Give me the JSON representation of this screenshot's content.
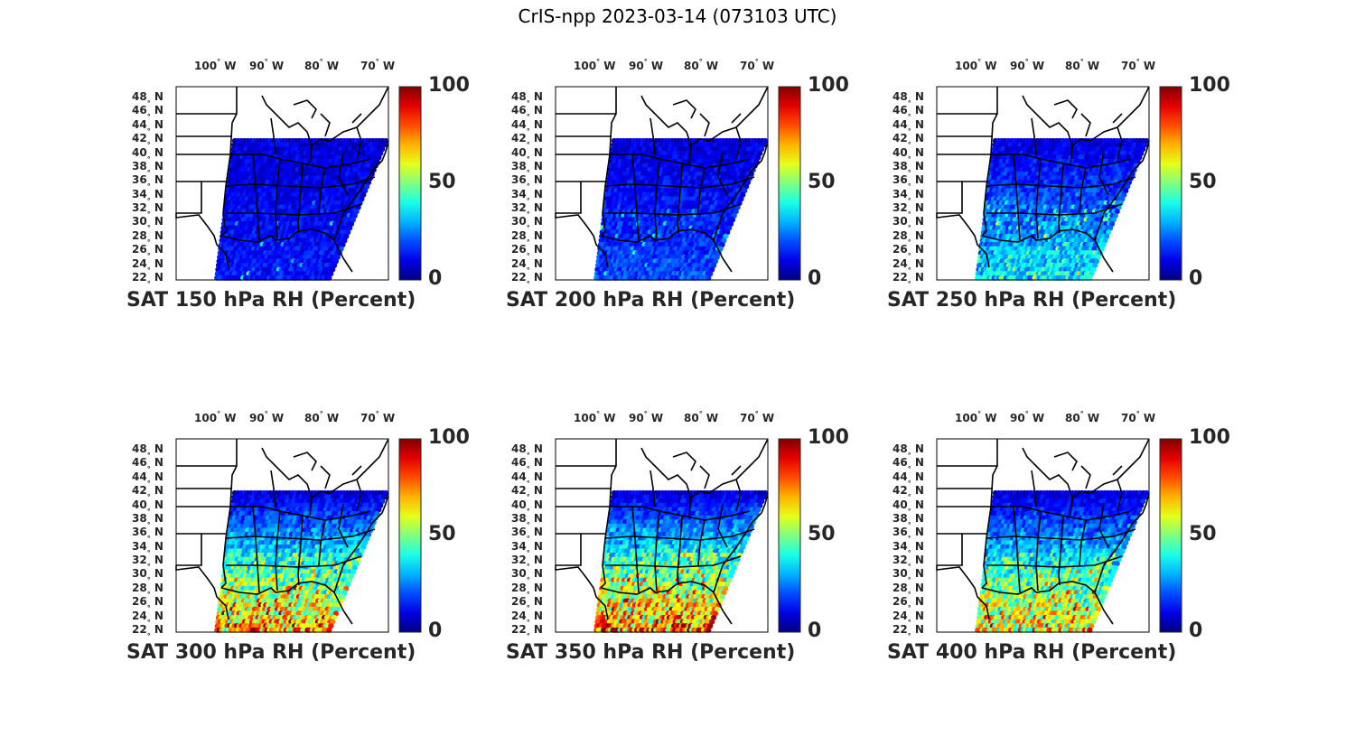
{
  "figure": {
    "title": "CrIS-npp 2023-03-14 (073103 UTC)"
  },
  "lon_labels": [
    "100",
    "90",
    "80",
    "70"
  ],
  "lon_suffix": "W",
  "lat_labels": [
    "48",
    "46",
    "44",
    "42",
    "40",
    "38",
    "36",
    "34",
    "32",
    "30",
    "28",
    "26",
    "24",
    "22"
  ],
  "lat_suffix": "N",
  "degree_symbol": "°",
  "colorbar": {
    "ticks": [
      "100",
      "50",
      "0"
    ],
    "min": 0,
    "max": 100,
    "colormap": "jet"
  },
  "panels": [
    {
      "title": "SAT 150 hPa RH (Percent)",
      "level": "150 hPa",
      "moisture": 0.05
    },
    {
      "title": "SAT 200 hPa RH (Percent)",
      "level": "200 hPa",
      "moisture": 0.1
    },
    {
      "title": "SAT 250 hPa RH (Percent)",
      "level": "250 hPa",
      "moisture": 0.25
    },
    {
      "title": "SAT 300 hPa RH (Percent)",
      "level": "300 hPa",
      "moisture": 0.55
    },
    {
      "title": "SAT 350 hPa RH (Percent)",
      "level": "350 hPa",
      "moisture": 0.6
    },
    {
      "title": "SAT 400 hPa RH (Percent)",
      "level": "400 hPa",
      "moisture": 0.5
    }
  ],
  "chart_data": {
    "type": "heatmap",
    "title": "CrIS-npp 2023-03-14 (073103 UTC)",
    "variable": "RH (Percent)",
    "extent": {
      "lon": [
        -105,
        -67
      ],
      "lat": [
        22,
        49
      ]
    },
    "clim": [
      0,
      100
    ],
    "panels": [
      "SAT 150 hPa RH (Percent)",
      "SAT 200 hPa RH (Percent)",
      "SAT 250 hPa RH (Percent)",
      "SAT 300 hPa RH (Percent)",
      "SAT 350 hPa RH (Percent)",
      "SAT 400 hPa RH (Percent)"
    ]
  }
}
